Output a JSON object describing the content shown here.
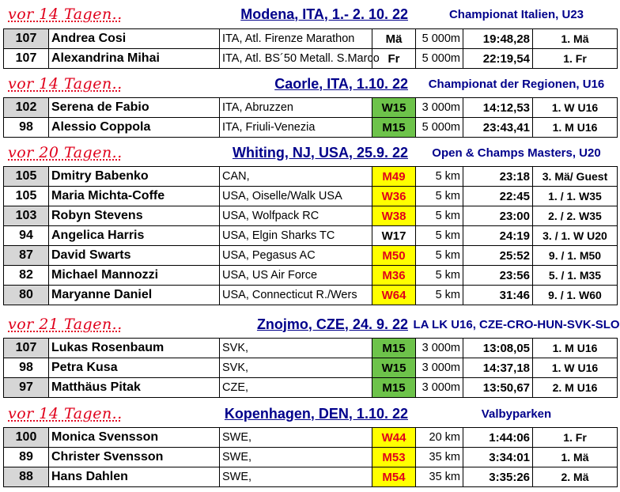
{
  "groups": [
    {
      "ago": "vor 14 Tagen..",
      "place": "Modena, ITA, 1.- 2. 10. 22",
      "event": "Championat Italien, U23",
      "rows": [
        {
          "points": "107",
          "name": "Andrea Cosi",
          "club": "ITA, Atl. Firenze Marathon",
          "category": "Mä",
          "cat_color": "none",
          "distance": "5 000m",
          "time": "19:48,28",
          "rank": "1. Mä"
        },
        {
          "points": "107",
          "name": "Alexandrina Mihai",
          "club": "ITA, Atl. BS´50 Metall. S.Marco",
          "category": "Fr",
          "cat_color": "none",
          "distance": "5 000m",
          "time": "22:19,54",
          "rank": "1. Fr"
        }
      ]
    },
    {
      "ago": "vor 14 Tagen..",
      "place": "Caorle, ITA, 1.10. 22",
      "event": "Championat der Regionen, U16",
      "rows": [
        {
          "points": "102",
          "name": "Serena de Fabio",
          "club": "ITA, Abruzzen",
          "category": "W15",
          "cat_color": "green",
          "distance": "3 000m",
          "time": "14:12,53",
          "rank": "1. W U16"
        },
        {
          "points": "98",
          "name": "Alessio Coppola",
          "club": "ITA, Friuli-Venezia",
          "category": "M15",
          "cat_color": "green",
          "distance": "5 000m",
          "time": "23:43,41",
          "rank": "1. M U16"
        }
      ]
    },
    {
      "ago": "vor 20 Tagen..",
      "place": "Whiting, NJ, USA, 25.9. 22",
      "event": "Open & Champs Masters, U20",
      "rows": [
        {
          "points": "105",
          "name": "Dmitry Babenko",
          "club": "CAN,",
          "category": "M49",
          "cat_color": "yellow",
          "distance": "5 km",
          "time": "23:18",
          "rank": "3. Mä/ Guest"
        },
        {
          "points": "105",
          "name": "Maria Michta-Coffe",
          "club": "USA, Oiselle/Walk USA",
          "category": "W36",
          "cat_color": "yellow",
          "distance": "5 km",
          "time": "22:45",
          "rank": "1. / 1. W35"
        },
        {
          "points": "103",
          "name": "Robyn Stevens",
          "club": "USA, Wolfpack RC",
          "category": "W38",
          "cat_color": "yellow",
          "distance": "5 km",
          "time": "23:00",
          "rank": "2. / 2. W35"
        },
        {
          "points": "94",
          "name": "Angelica Harris",
          "club": "USA, Elgin Sharks TC",
          "category": "W17",
          "cat_color": "none",
          "distance": "5 km",
          "time": "24:19",
          "rank": "3. / 1. W U20"
        },
        {
          "points": "87",
          "name": "David Swarts",
          "club": "USA, Pegasus AC",
          "category": "M50",
          "cat_color": "yellow",
          "distance": "5 km",
          "time": "25:52",
          "rank": "9. / 1. M50"
        },
        {
          "points": "82",
          "name": "Michael Mannozzi",
          "club": "USA, US Air Force",
          "category": "M36",
          "cat_color": "yellow",
          "distance": "5 km",
          "time": "23:56",
          "rank": "5. / 1. M35"
        },
        {
          "points": "80",
          "name": "Maryanne Daniel",
          "club": "USA, Connecticut R./Wers",
          "category": "W64",
          "cat_color": "yellow",
          "distance": "5 km",
          "time": "31:46",
          "rank": "9. / 1. W60"
        }
      ]
    },
    {
      "ago": "vor 21 Tagen..",
      "place": "Znojmo, CZE, 24. 9. 22",
      "event": "LA LK U16, CZE-CRO-HUN-SVK-SLO",
      "rows": [
        {
          "points": "107",
          "name": "Lukas Rosenbaum",
          "club": "SVK,",
          "category": "M15",
          "cat_color": "green",
          "distance": "3 000m",
          "time": "13:08,05",
          "rank": "1. M U16"
        },
        {
          "points": "98",
          "name": "Petra Kusa",
          "club": "SVK,",
          "category": "W15",
          "cat_color": "green",
          "distance": "3 000m",
          "time": "14:37,18",
          "rank": "1. W U16"
        },
        {
          "points": "97",
          "name": "Matthäus Pitak",
          "club": "CZE,",
          "category": "M15",
          "cat_color": "green",
          "distance": "3 000m",
          "time": "13:50,67",
          "rank": "2. M U16"
        }
      ]
    },
    {
      "ago": "vor 14 Tagen..",
      "place": "Kopenhagen, DEN, 1.10. 22",
      "event": "Valbyparken",
      "rows": [
        {
          "points": "100",
          "name": "Monica Svensson",
          "club": "SWE,",
          "category": "W44",
          "cat_color": "yellow",
          "distance": "20 km",
          "time": "1:44:06",
          "rank": "1. Fr"
        },
        {
          "points": "89",
          "name": "Christer Svensson",
          "club": "SWE,",
          "category": "M53",
          "cat_color": "yellow",
          "distance": "35 km",
          "time": "3:34:01",
          "rank": "1. Mä"
        },
        {
          "points": "88",
          "name": "Hans Dahlen",
          "club": "SWE,",
          "category": "M54",
          "cat_color": "yellow",
          "distance": "35 km",
          "time": "3:35:26",
          "rank": "2. Mä"
        }
      ]
    }
  ]
}
